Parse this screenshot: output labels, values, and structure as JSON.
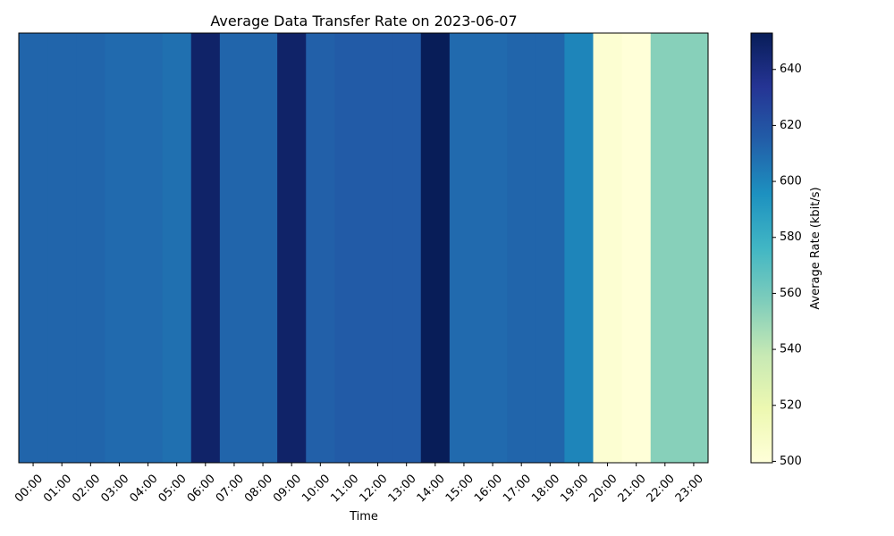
{
  "chart_data": {
    "type": "heatmap",
    "title": "Average Data Transfer Rate on 2023-06-07",
    "xlabel": "Time",
    "ylabel": "",
    "categories": [
      "00:00",
      "01:00",
      "02:00",
      "03:00",
      "04:00",
      "05:00",
      "06:00",
      "07:00",
      "08:00",
      "09:00",
      "10:00",
      "11:00",
      "12:00",
      "13:00",
      "14:00",
      "15:00",
      "16:00",
      "17:00",
      "18:00",
      "19:00",
      "20:00",
      "21:00",
      "22:00",
      "23:00"
    ],
    "values": [
      612,
      612,
      612,
      610,
      610,
      608,
      648,
      612,
      612,
      648,
      614,
      616,
      616,
      616,
      653,
      610,
      610,
      612,
      612,
      600,
      503,
      500,
      555,
      555
    ],
    "colorbar": {
      "label": "Average Rate (kbit/s)",
      "range": [
        499.5,
        653
      ],
      "ticks": [
        500,
        520,
        540,
        560,
        580,
        600,
        620,
        640
      ],
      "colormap": "YlGnBu",
      "colormap_stops": [
        "#ffffd9",
        "#edf8b1",
        "#c7e9b4",
        "#7fcdbb",
        "#41b6c4",
        "#1d91c0",
        "#225ea8",
        "#253494",
        "#081d58"
      ]
    },
    "grid": false
  }
}
